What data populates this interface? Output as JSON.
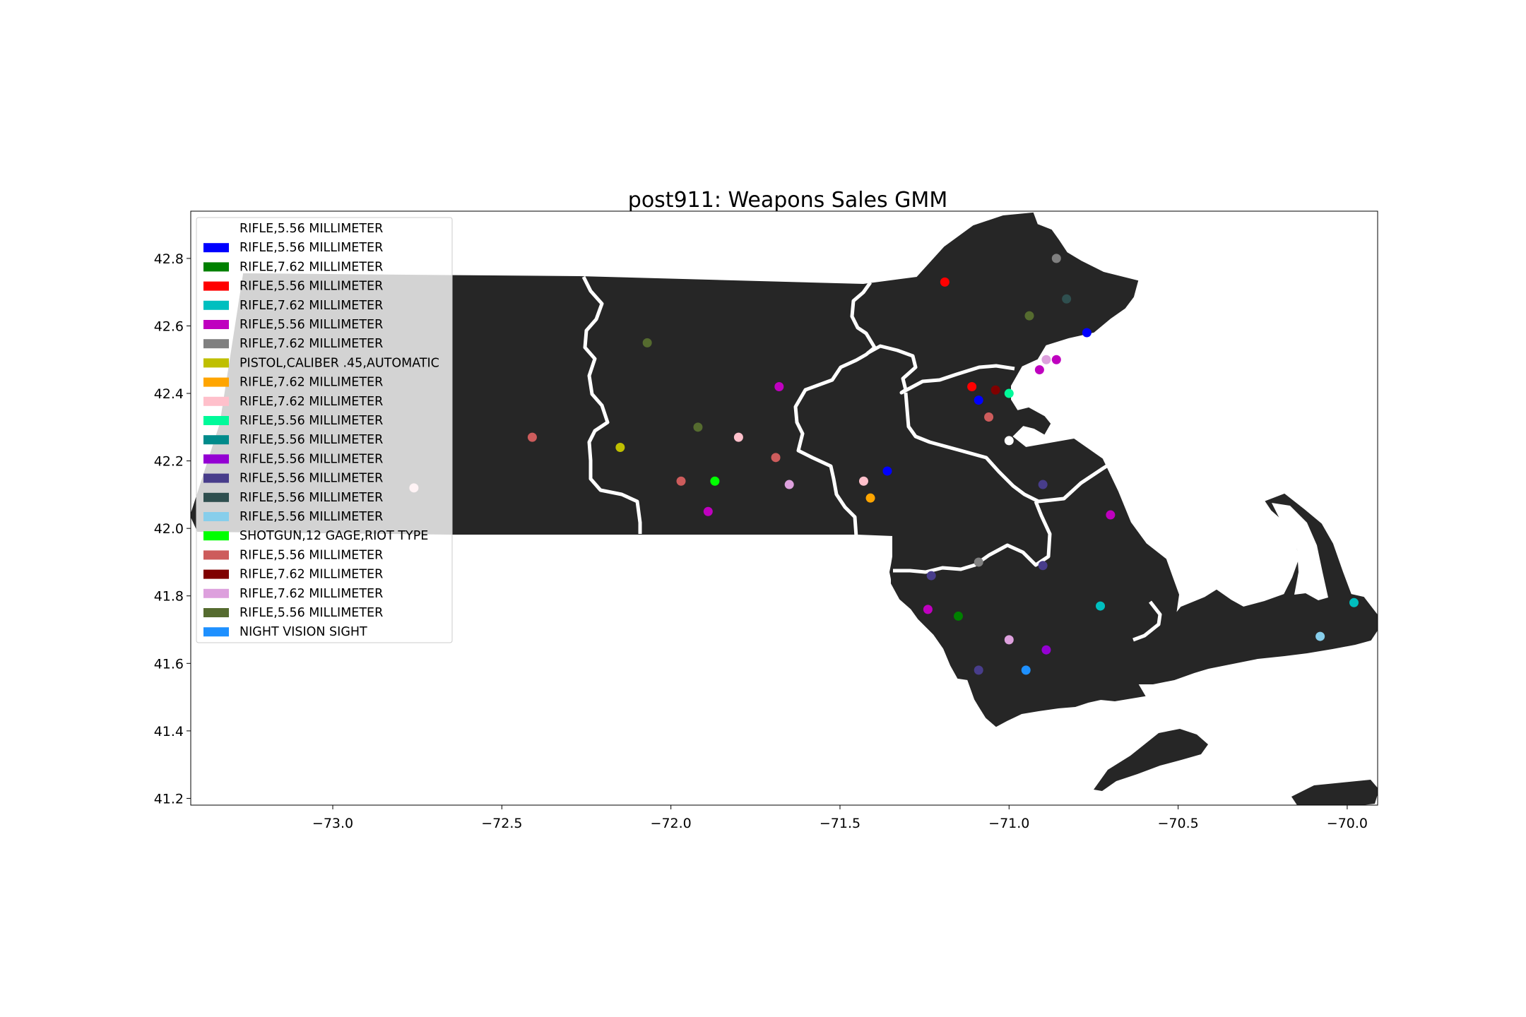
{
  "chart_data": {
    "type": "scatter",
    "title": "post911: Weapons Sales GMM",
    "xlabel": "",
    "ylabel": "",
    "xlim": [
      -73.42,
      -69.91
    ],
    "ylim": [
      41.18,
      42.94
    ],
    "x_ticks": [
      -73.0,
      -72.5,
      -72.0,
      -71.5,
      -71.0,
      -70.5,
      -70.0
    ],
    "x_tick_labels": [
      "−73.0",
      "−72.5",
      "−72.0",
      "−71.5",
      "−71.0",
      "−70.5",
      "−70.0"
    ],
    "y_ticks": [
      41.2,
      41.4,
      41.6,
      41.8,
      42.0,
      42.2,
      42.4,
      42.6,
      42.8
    ],
    "y_tick_labels": [
      "41.2",
      "41.4",
      "41.6",
      "41.8",
      "42.0",
      "42.2",
      "42.4",
      "42.6",
      "42.8"
    ],
    "grid": false,
    "legend_position": "top-left",
    "background": "map of Massachusetts counties (dark fill, white county borders)",
    "series": [
      {
        "name": "RIFLE,5.56 MILLIMETER",
        "color": "#ffffff",
        "points": [
          [
            -71.0,
            42.26
          ]
        ]
      },
      {
        "name": "RIFLE,5.56 MILLIMETER",
        "color": "#0000ff",
        "points": [
          [
            -70.77,
            42.58
          ],
          [
            -71.36,
            42.17
          ],
          [
            -71.09,
            42.38
          ]
        ]
      },
      {
        "name": "RIFLE,7.62 MILLIMETER",
        "color": "#008000",
        "points": [
          [
            -71.15,
            41.74
          ]
        ]
      },
      {
        "name": "RIFLE,5.56 MILLIMETER",
        "color": "#ff0000",
        "points": [
          [
            -71.19,
            42.73
          ],
          [
            -71.11,
            42.42
          ]
        ]
      },
      {
        "name": "RIFLE,7.62 MILLIMETER",
        "color": "#00bfbf",
        "points": [
          [
            -70.73,
            41.77
          ],
          [
            -69.98,
            41.78
          ]
        ]
      },
      {
        "name": "RIFLE,5.56 MILLIMETER",
        "color": "#bf00bf",
        "points": [
          [
            -71.68,
            42.42
          ],
          [
            -71.89,
            42.05
          ],
          [
            -70.91,
            42.47
          ],
          [
            -70.86,
            42.5
          ],
          [
            -70.7,
            42.04
          ],
          [
            -71.24,
            41.76
          ]
        ]
      },
      {
        "name": "RIFLE,7.62 MILLIMETER",
        "color": "#808080",
        "points": [
          [
            -70.86,
            42.8
          ],
          [
            -71.09,
            41.9
          ]
        ]
      },
      {
        "name": "PISTOL,CALIBER .45,AUTOMATIC",
        "color": "#bfbf00",
        "points": [
          [
            -72.15,
            42.24
          ]
        ]
      },
      {
        "name": "RIFLE,7.62 MILLIMETER",
        "color": "#ffa500",
        "points": [
          [
            -71.41,
            42.09
          ]
        ]
      },
      {
        "name": "RIFLE,7.62 MILLIMETER",
        "color": "#ffc0cb",
        "points": [
          [
            -71.8,
            42.27
          ],
          [
            -72.76,
            42.12
          ],
          [
            -71.43,
            42.14
          ]
        ]
      },
      {
        "name": "RIFLE,5.56 MILLIMETER",
        "color": "#00fa9a",
        "points": [
          [
            -71.0,
            42.4
          ]
        ]
      },
      {
        "name": "RIFLE,5.56 MILLIMETER",
        "color": "#008b8b",
        "points": []
      },
      {
        "name": "RIFLE,5.56 MILLIMETER",
        "color": "#9400d3",
        "points": [
          [
            -70.89,
            41.64
          ]
        ]
      },
      {
        "name": "RIFLE,5.56 MILLIMETER",
        "color": "#483d8b",
        "points": [
          [
            -71.23,
            41.86
          ],
          [
            -71.09,
            41.58
          ],
          [
            -70.9,
            42.13
          ],
          [
            -70.9,
            41.89
          ]
        ]
      },
      {
        "name": "RIFLE,5.56 MILLIMETER",
        "color": "#2f4f4f",
        "points": [
          [
            -70.83,
            42.68
          ]
        ]
      },
      {
        "name": "RIFLE,5.56 MILLIMETER",
        "color": "#87ceeb",
        "points": [
          [
            -70.08,
            41.68
          ]
        ]
      },
      {
        "name": "SHOTGUN,12 GAGE,RIOT TYPE",
        "color": "#00ff00",
        "points": [
          [
            -71.87,
            42.14
          ]
        ]
      },
      {
        "name": "RIFLE,5.56 MILLIMETER",
        "color": "#cd5c5c",
        "points": [
          [
            -72.41,
            42.27
          ],
          [
            -71.97,
            42.14
          ],
          [
            -71.69,
            42.21
          ],
          [
            -71.06,
            42.33
          ]
        ]
      },
      {
        "name": "RIFLE,7.62 MILLIMETER",
        "color": "#800000",
        "points": [
          [
            -71.04,
            42.41
          ]
        ]
      },
      {
        "name": "RIFLE,7.62 MILLIMETER",
        "color": "#dda0dd",
        "points": [
          [
            -71.65,
            42.13
          ],
          [
            -71.0,
            41.67
          ],
          [
            -70.89,
            42.5
          ]
        ]
      },
      {
        "name": "RIFLE,5.56 MILLIMETER",
        "color": "#556b2f",
        "points": [
          [
            -72.07,
            42.55
          ],
          [
            -71.92,
            42.3
          ],
          [
            -70.94,
            42.63
          ]
        ]
      },
      {
        "name": "NIGHT VISION SIGHT",
        "color": "#1e90ff",
        "points": [
          [
            -70.95,
            41.58
          ]
        ]
      }
    ]
  }
}
